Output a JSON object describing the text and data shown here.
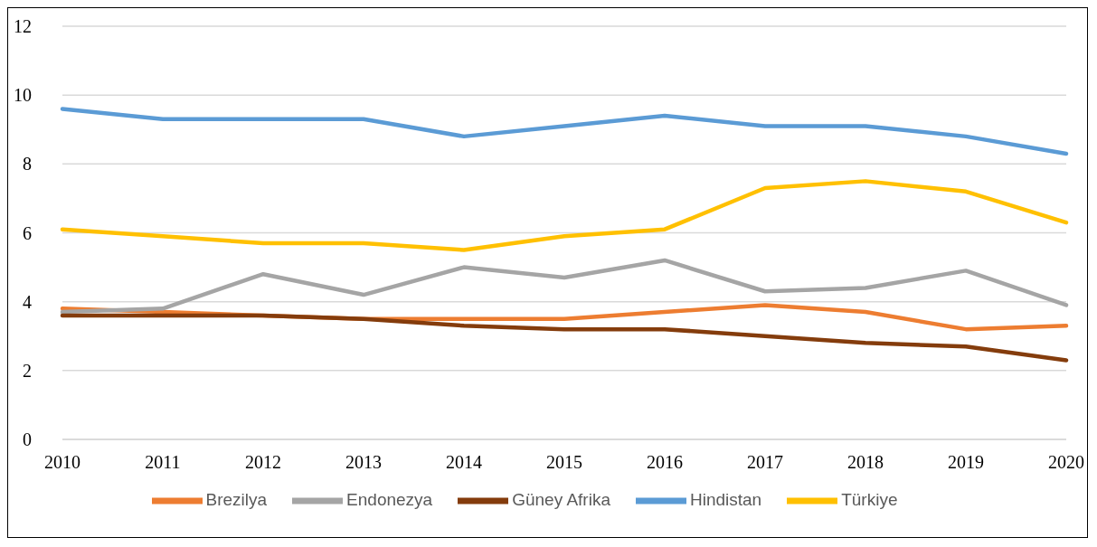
{
  "chart_data": {
    "type": "line",
    "categories": [
      "2010",
      "2011",
      "2012",
      "2013",
      "2014",
      "2015",
      "2016",
      "2017",
      "2018",
      "2019",
      "2020"
    ],
    "series": [
      {
        "name": "Hindistan",
        "color": "#5b9bd5",
        "values": [
          9.6,
          9.3,
          9.3,
          9.3,
          8.8,
          9.1,
          9.4,
          9.1,
          9.1,
          8.8,
          8.3
        ]
      },
      {
        "name": "Brezilya",
        "color": "#ed7d31",
        "values": [
          3.8,
          3.7,
          3.6,
          3.5,
          3.5,
          3.5,
          3.7,
          3.9,
          3.7,
          3.2,
          3.3
        ]
      },
      {
        "name": "Endonezya",
        "color": "#a5a5a5",
        "values": [
          3.7,
          3.8,
          4.8,
          4.2,
          5.0,
          4.7,
          5.2,
          4.3,
          4.4,
          4.9,
          3.9
        ]
      },
      {
        "name": "Türkiye",
        "color": "#ffc000",
        "values": [
          6.1,
          5.9,
          5.7,
          5.7,
          5.5,
          5.9,
          6.1,
          7.3,
          7.5,
          7.2,
          6.3
        ]
      },
      {
        "name": "Güney Afrika",
        "color": "#843c0c",
        "values": [
          3.6,
          3.6,
          3.6,
          3.5,
          3.3,
          3.2,
          3.2,
          3.0,
          2.8,
          2.7,
          2.3
        ]
      }
    ],
    "ylim": [
      0,
      12
    ],
    "yticks": [
      0,
      2,
      4,
      6,
      8,
      10,
      12
    ],
    "grid": "y",
    "legend": "bottom",
    "marker": "none",
    "line_style": "solid"
  }
}
